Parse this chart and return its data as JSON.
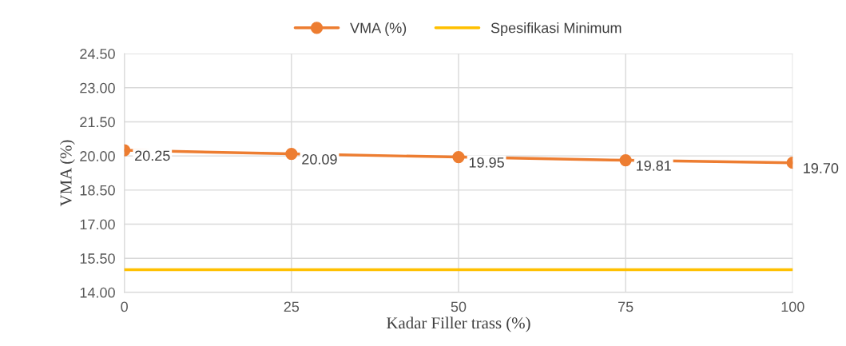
{
  "chart_data": {
    "type": "line",
    "xlabel": "Kadar Filler trass (%)",
    "ylabel": "VMA (%)",
    "x": [
      0,
      25,
      50,
      75,
      100
    ],
    "series": [
      {
        "name": "VMA (%)",
        "color": "#ed7d31",
        "values": [
          20.25,
          20.09,
          19.95,
          19.81,
          19.7
        ],
        "marker": "circle",
        "value_labels": [
          "20.25",
          "20.09",
          "19.95",
          "19.81",
          "19.70"
        ]
      },
      {
        "name": "Spesifikasi Minimum",
        "color": "#ffc000",
        "values": [
          15,
          15,
          15,
          15,
          15
        ],
        "marker": "none"
      }
    ],
    "xlim": [
      0,
      100
    ],
    "xticks": [
      0,
      25,
      50,
      75,
      100
    ],
    "ylim": [
      14,
      24.5
    ],
    "yticks": [
      {
        "value": 14,
        "label": "14.00"
      },
      {
        "value": 15.5,
        "label": "15.50"
      },
      {
        "value": 17,
        "label": "17.00"
      },
      {
        "value": 18.5,
        "label": "18.50"
      },
      {
        "value": 20,
        "label": "20.00"
      },
      {
        "value": 21.5,
        "label": "21.50"
      },
      {
        "value": 23,
        "label": "23.00"
      },
      {
        "value": 24.5,
        "label": "24.50"
      }
    ],
    "grid": true,
    "legend": "top"
  }
}
